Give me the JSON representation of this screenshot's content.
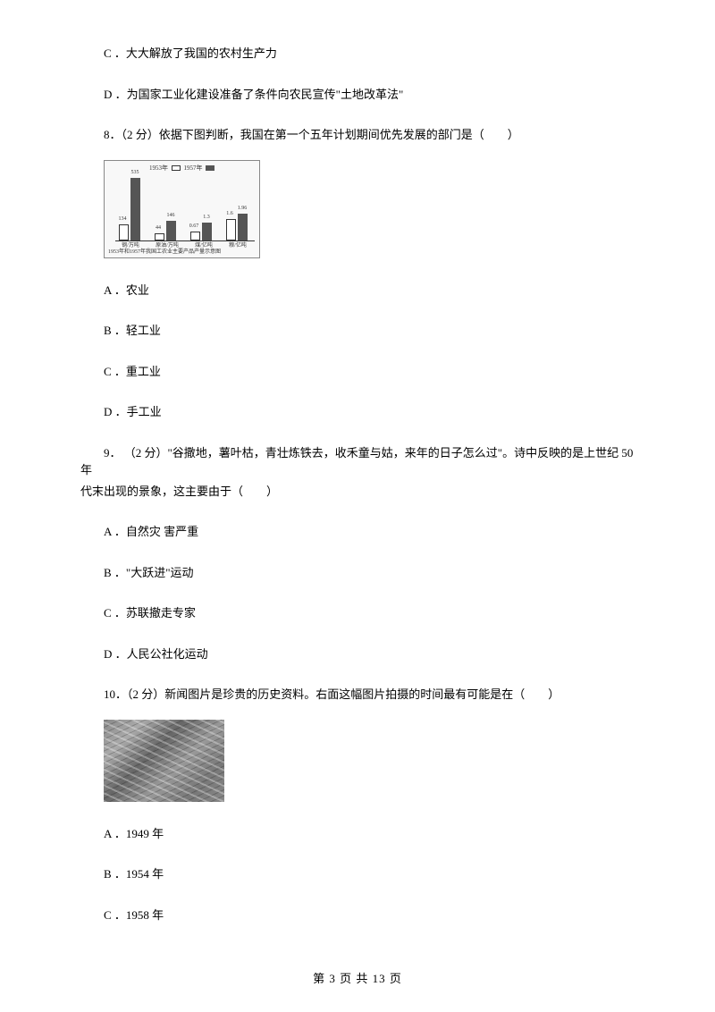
{
  "items": {
    "opt_c_prev": "C ．大大解放了我国的农村生产力",
    "opt_d_prev": "D ．为国家工业化建设准备了条件向农民宣传\"土地改革法\"",
    "q8": "8．（2 分）依据下图判断，我国在第一个五年计划期间优先发展的部门是（　　）",
    "q8_a": "A ．农业",
    "q8_b": "B ．轻工业",
    "q8_c": "C ．重工业",
    "q8_d": "D ．手工业",
    "q9_l1": "9． （2 分）\"谷撒地，薯叶枯，青壮炼铁去，收禾童与姑，来年的日子怎么过\"。诗中反映的是上世纪 50　年",
    "q9_l2": "代末出现的景象，这主要由于（　　）",
    "q9_a": "A ．自然灾 害严重",
    "q9_b": "B ．\"大跃进\"运动",
    "q9_c": "C ．苏联撤走专家",
    "q9_d": "D ．人民公社化运动",
    "q10": "10．（2 分）新闻图片是珍贵的历史资料。右面这幅图片拍摄的时间最有可能是在（　　）",
    "q10_a": "A ．1949 年",
    "q10_b": "B ．1954 年",
    "q10_c": "C ．1958 年"
  },
  "chart": {
    "legend_1953": "1953年",
    "legend_1957": "1957年",
    "x_labels": [
      "钢/万吨",
      "原油/万吨",
      "煤/亿吨",
      "粮/亿吨"
    ],
    "caption": "1953年和1957年我国工农业主要产品产量示意图",
    "groups": [
      {
        "v1": "134",
        "h1": 18,
        "v2": "535",
        "h2": 70
      },
      {
        "v1": "44",
        "h1": 8,
        "v2": "146",
        "h2": 22
      },
      {
        "v1": "0.67",
        "h1": 10,
        "v2": "1.3",
        "h2": 20
      },
      {
        "v1": "1.6",
        "h1": 24,
        "v2": "1.96",
        "h2": 30
      }
    ]
  },
  "footer": {
    "page": "第 3 页 共 13 页"
  }
}
